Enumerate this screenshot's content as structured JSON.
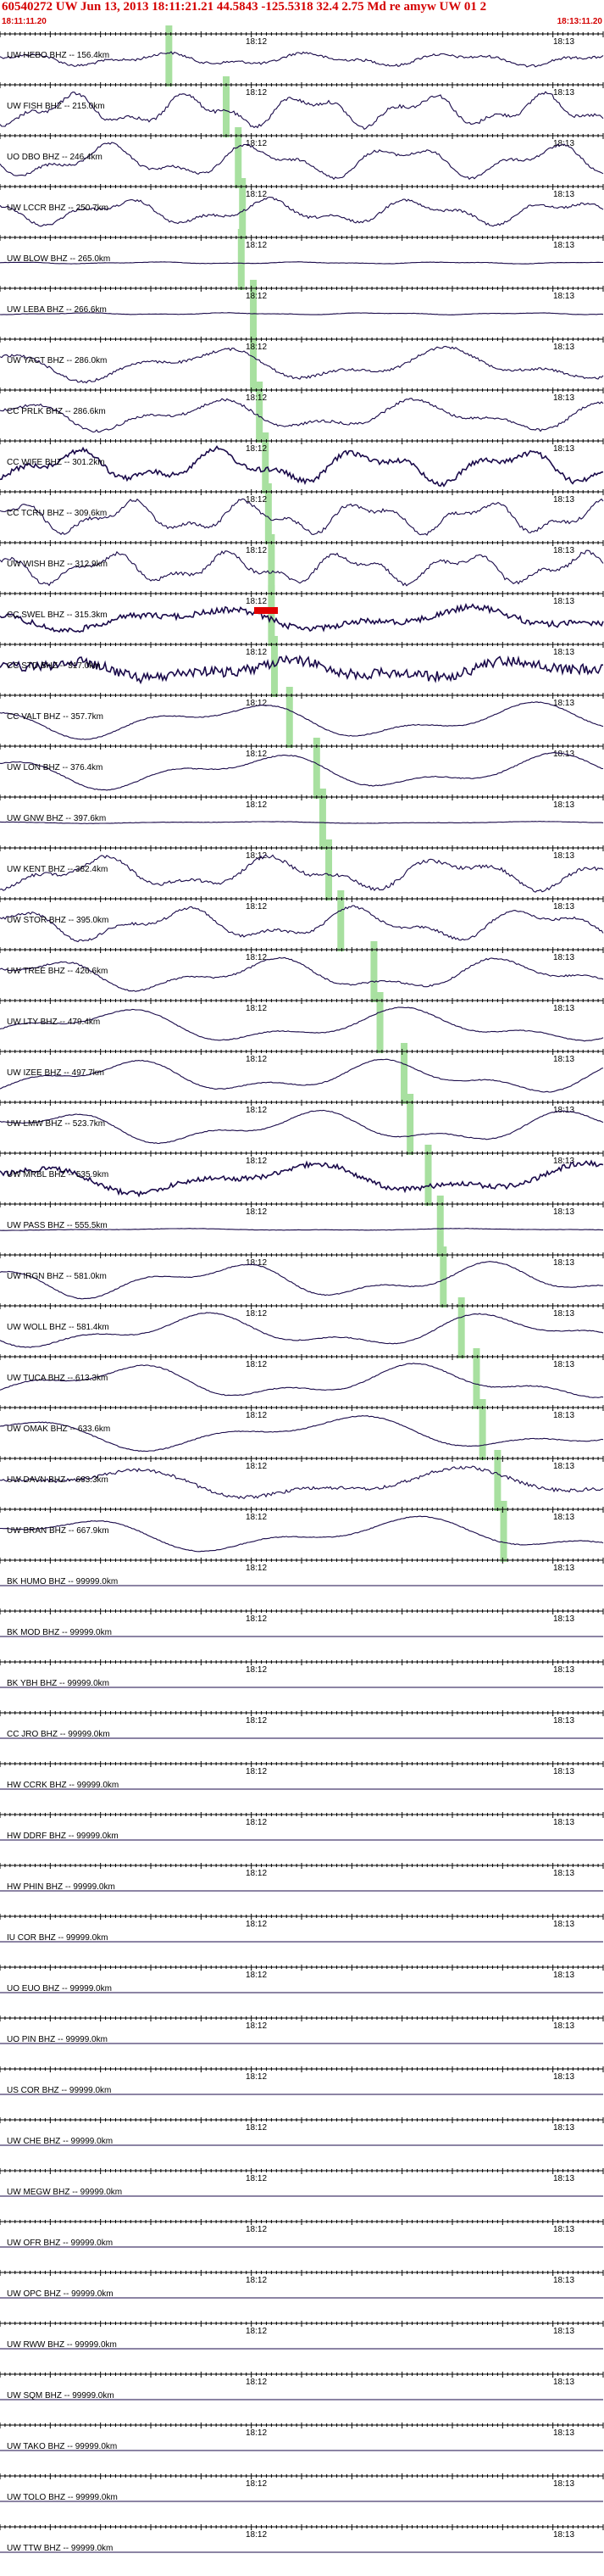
{
  "header": {
    "title": "60540272 UW Jun 13, 2013 18:11:21.21    44.5843  -125.5318 32.4 2.75 Md re amyw UW 01   2",
    "start_time": "18:11:11.20",
    "end_time": "18:13:11.20"
  },
  "tick_labels": {
    "mid": "18:12",
    "end": "18:13"
  },
  "colors": {
    "trace": "#1a0a4a",
    "pick": "#a8e0a0",
    "header": "#d40000",
    "marker": "#e00000"
  },
  "stations": [
    {
      "label": "UW HEBO BHZ -- 156.4km",
      "amp": 0.35,
      "noise": 0.15,
      "period": 5,
      "pick": 0.28
    },
    {
      "label": "UW FISH BHZ -- 215.0km",
      "amp": 0.9,
      "noise": 0.2,
      "period": 4,
      "pick": 0.375
    },
    {
      "label": "UO DBO BHZ -- 246.4km",
      "amp": 0.9,
      "noise": 0.15,
      "period": 5,
      "pick": 0.395
    },
    {
      "label": "UW LCCR BHZ -- 250.7km",
      "amp": 0.7,
      "noise": 0.15,
      "period": 5,
      "pick": 0.402
    },
    {
      "label": "UW BLOW BHZ -- 265.0km",
      "amp": 0.05,
      "noise": 0.02,
      "period": 5,
      "pick": 0.4
    },
    {
      "label": "UW LEBA BHZ -- 266.6km",
      "amp": 0.05,
      "noise": 0.02,
      "period": 5,
      "pick": 0.42
    },
    {
      "label": "UW YACT BHZ -- 286.0km",
      "amp": 0.9,
      "noise": 0.15,
      "period": 8,
      "pick": 0.42
    },
    {
      "label": "CC PRLK BHZ -- 286.6km",
      "amp": 0.85,
      "noise": 0.15,
      "period": 7,
      "pick": 0.43
    },
    {
      "label": "CC WIFE BHZ -- 301.2km",
      "amp": 0.9,
      "noise": 0.3,
      "period": 5,
      "pick": 0.44
    },
    {
      "label": "CC TCRU BHZ -- 309.6km",
      "amp": 0.9,
      "noise": 0.2,
      "period": 4,
      "pick": 0.445
    },
    {
      "label": "UW WISH BHZ -- 312.9km",
      "amp": 0.85,
      "noise": 0.2,
      "period": 4,
      "pick": 0.45
    },
    {
      "label": "CC SWEL BHZ -- 315.3km",
      "amp": 0.6,
      "noise": 0.35,
      "period": 9,
      "pick": 0.45
    },
    {
      "label": "CC STD BHZ -- 317.0km",
      "amp": 0.5,
      "noise": 0.6,
      "period": 8,
      "pick": 0.455
    },
    {
      "label": "CC VALT BHZ -- 357.7km",
      "amp": 0.95,
      "noise": 0.05,
      "period": 10,
      "pick": 0.48
    },
    {
      "label": "UW LON BHZ -- 376.4km",
      "amp": 0.95,
      "noise": 0.05,
      "period": 10,
      "pick": 0.525
    },
    {
      "label": "UW GNW BHZ -- 397.6km",
      "amp": 0.05,
      "noise": 0.02,
      "period": 10,
      "pick": 0.535
    },
    {
      "label": "UW KENT BHZ -- 382.4km",
      "amp": 0.9,
      "noise": 0.2,
      "period": 6,
      "pick": 0.545
    },
    {
      "label": "UW STOR BHZ -- 395.0km",
      "amp": 0.9,
      "noise": 0.15,
      "period": 6,
      "pick": 0.565
    },
    {
      "label": "UW TREE BHZ -- 426.6km",
      "amp": 0.9,
      "noise": 0.1,
      "period": 8,
      "pick": 0.62
    },
    {
      "label": "UW LTY BHZ -- 479.4km",
      "amp": 0.95,
      "noise": 0.05,
      "period": 10,
      "pick": 0.63
    },
    {
      "label": "UW IZEE BHZ -- 497.7km",
      "amp": 0.9,
      "noise": 0.05,
      "period": 9,
      "pick": 0.67
    },
    {
      "label": "UW LMW BHZ -- 523.7km",
      "amp": 0.9,
      "noise": 0.05,
      "period": 9,
      "pick": 0.68
    },
    {
      "label": "UW MRBL BHZ -- 535.9km",
      "amp": 0.8,
      "noise": 0.3,
      "period": 10,
      "pick": 0.71
    },
    {
      "label": "UW PASS BHZ -- 555.5km",
      "amp": 0.05,
      "noise": 0.02,
      "period": 10,
      "pick": 0.73
    },
    {
      "label": "UW IRGN BHZ -- 581.0km",
      "amp": 0.95,
      "noise": 0.05,
      "period": 9,
      "pick": 0.735
    },
    {
      "label": "UW WOLL BHZ -- 581.4km",
      "amp": 0.95,
      "noise": 0.05,
      "period": 10,
      "pick": 0.765
    },
    {
      "label": "UW TUCA BHZ -- 613.3km",
      "amp": 0.95,
      "noise": 0.05,
      "period": 10,
      "pick": 0.79
    },
    {
      "label": "UW OMAK BHZ -- 633.6km",
      "amp": 0.95,
      "noise": 0.05,
      "period": 12,
      "pick": 0.8
    },
    {
      "label": "UW DAVN BHZ -- 663.3km",
      "amp": 0.85,
      "noise": 0.2,
      "period": 12,
      "pick": 0.825
    },
    {
      "label": "UW BRAN BHZ -- 667.9km",
      "amp": 0.95,
      "noise": 0.05,
      "period": 12,
      "pick": 0.835
    },
    {
      "label": "BK HUMO BHZ -- 99999.0km",
      "amp": 0,
      "noise": 0,
      "period": 1,
      "pick": -1
    },
    {
      "label": "BK MOD BHZ -- 99999.0km",
      "amp": 0,
      "noise": 0,
      "period": 1,
      "pick": -1
    },
    {
      "label": "BK YBH BHZ -- 99999.0km",
      "amp": 0,
      "noise": 0,
      "period": 1,
      "pick": -1
    },
    {
      "label": "CC JRO BHZ -- 99999.0km",
      "amp": 0,
      "noise": 0,
      "period": 1,
      "pick": -1
    },
    {
      "label": "HW CCRK BHZ -- 99999.0km",
      "amp": 0,
      "noise": 0,
      "period": 1,
      "pick": -1
    },
    {
      "label": "HW DDRF BHZ -- 99999.0km",
      "amp": 0,
      "noise": 0,
      "period": 1,
      "pick": -1
    },
    {
      "label": "HW PHIN BHZ -- 99999.0km",
      "amp": 0,
      "noise": 0,
      "period": 1,
      "pick": -1
    },
    {
      "label": "IU COR BHZ -- 99999.0km",
      "amp": 0,
      "noise": 0,
      "period": 1,
      "pick": -1
    },
    {
      "label": "UO EUO BHZ -- 99999.0km",
      "amp": 0,
      "noise": 0,
      "period": 1,
      "pick": -1
    },
    {
      "label": "UO PIN BHZ -- 99999.0km",
      "amp": 0,
      "noise": 0,
      "period": 1,
      "pick": -1
    },
    {
      "label": "US COR BHZ -- 99999.0km",
      "amp": 0,
      "noise": 0,
      "period": 1,
      "pick": -1
    },
    {
      "label": "UW CHE BHZ -- 99999.0km",
      "amp": 0,
      "noise": 0,
      "period": 1,
      "pick": -1
    },
    {
      "label": "UW MEGW BHZ -- 99999.0km",
      "amp": 0,
      "noise": 0,
      "period": 1,
      "pick": -1
    },
    {
      "label": "UW OFR BHZ -- 99999.0km",
      "amp": 0,
      "noise": 0,
      "period": 1,
      "pick": -1
    },
    {
      "label": "UW OPC BHZ -- 99999.0km",
      "amp": 0,
      "noise": 0,
      "period": 1,
      "pick": -1
    },
    {
      "label": "UW RWW BHZ -- 99999.0km",
      "amp": 0,
      "noise": 0,
      "period": 1,
      "pick": -1
    },
    {
      "label": "UW SQM BHZ -- 99999.0km",
      "amp": 0,
      "noise": 0,
      "period": 1,
      "pick": -1
    },
    {
      "label": "UW TAKO BHZ -- 99999.0km",
      "amp": 0,
      "noise": 0,
      "period": 1,
      "pick": -1
    },
    {
      "label": "UW TOLO BHZ -- 99999.0km",
      "amp": 0,
      "noise": 0,
      "period": 1,
      "pick": -1
    },
    {
      "label": "UW TTW BHZ -- 99999.0km",
      "amp": 0,
      "noise": 0,
      "period": 1,
      "pick": -1
    }
  ]
}
